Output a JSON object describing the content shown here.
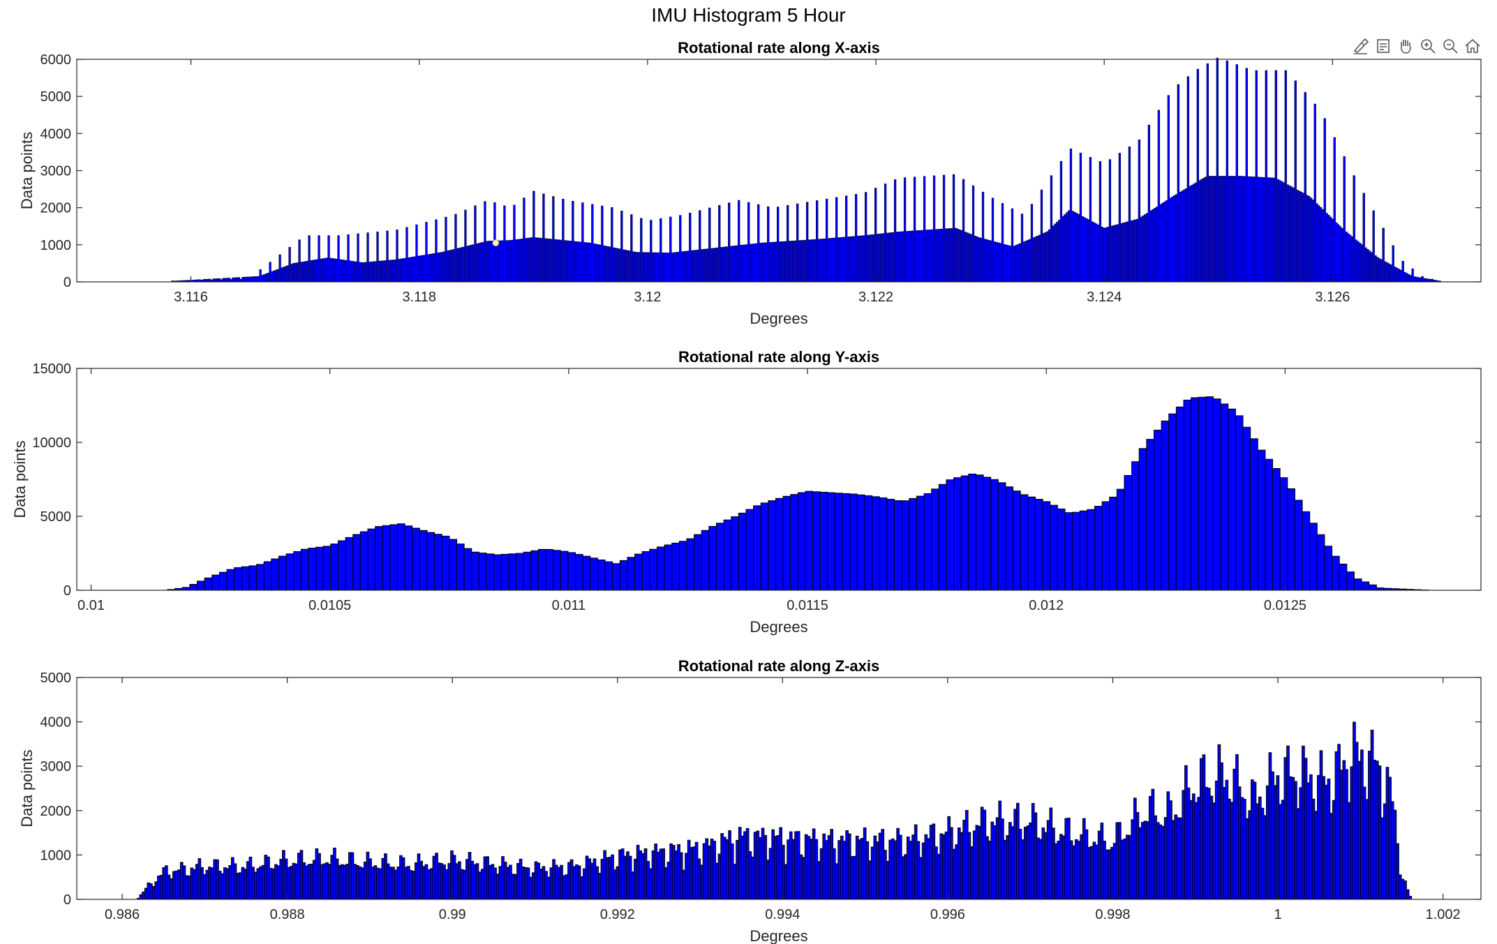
{
  "figure": {
    "title": "IMU Histogram 5 Hour"
  },
  "toolbar": {
    "icons": [
      "brush-icon",
      "data-tips-icon",
      "pan-hand-icon",
      "zoom-in-icon",
      "zoom-out-icon",
      "home-icon"
    ]
  },
  "colors": {
    "bar_fill": "#0000ff",
    "bar_edge": "#000000",
    "axis": "#262626",
    "marker": "#ffffaa"
  },
  "chart_data": [
    {
      "type": "bar",
      "title": "Rotational rate along X-axis",
      "xlabel": "Degrees",
      "ylabel": "Data points",
      "xlim": [
        3.115,
        3.1273
      ],
      "ylim": [
        0,
        6000
      ],
      "xticks": [
        3.116,
        3.118,
        3.12,
        3.122,
        3.124,
        3.126
      ],
      "xtick_labels": [
        "3.116",
        "3.118",
        "3.12",
        "3.122",
        "3.124",
        "3.126"
      ],
      "yticks": [
        0,
        1000,
        2000,
        3000,
        4000,
        5000,
        6000
      ],
      "ytick_labels": [
        "0",
        "1000",
        "2000",
        "3000",
        "4000",
        "5000",
        "6000"
      ],
      "x_range": [
        3.11583,
        3.12695
      ],
      "bin_count": 650,
      "tall_bar_every": 5,
      "tall_envelope": [
        [
          3.11583,
          30
        ],
        [
          3.1165,
          80
        ],
        [
          3.117,
          1250
        ],
        [
          3.1173,
          1250
        ],
        [
          3.1178,
          1400
        ],
        [
          3.1183,
          1800
        ],
        [
          3.1186,
          2200
        ],
        [
          3.1188,
          2000
        ],
        [
          3.119,
          2450
        ],
        [
          3.1193,
          2200
        ],
        [
          3.1197,
          2000
        ],
        [
          3.12,
          1650
        ],
        [
          3.1203,
          1800
        ],
        [
          3.1208,
          2200
        ],
        [
          3.1211,
          2000
        ],
        [
          3.1215,
          2200
        ],
        [
          3.1219,
          2400
        ],
        [
          3.1222,
          2800
        ],
        [
          3.1227,
          2900
        ],
        [
          3.123,
          2300
        ],
        [
          3.1233,
          1800
        ],
        [
          3.1237,
          3600
        ],
        [
          3.124,
          3200
        ],
        [
          3.1243,
          3800
        ],
        [
          3.1246,
          5200
        ],
        [
          3.1248,
          5700
        ],
        [
          3.125,
          6050
        ],
        [
          3.1253,
          5700
        ],
        [
          3.1256,
          5700
        ],
        [
          3.1259,
          4600
        ],
        [
          3.1262,
          2800
        ],
        [
          3.1264,
          1700
        ],
        [
          3.1266,
          600
        ],
        [
          3.1268,
          120
        ],
        [
          3.12695,
          30
        ]
      ],
      "base_envelope": [
        [
          3.11583,
          20
        ],
        [
          3.1166,
          150
        ],
        [
          3.1169,
          500
        ],
        [
          3.1172,
          650
        ],
        [
          3.1175,
          520
        ],
        [
          3.1178,
          600
        ],
        [
          3.1182,
          800
        ],
        [
          3.1186,
          1100
        ],
        [
          3.1188,
          1120
        ],
        [
          3.119,
          1200
        ],
        [
          3.1195,
          1050
        ],
        [
          3.1199,
          800
        ],
        [
          3.1202,
          780
        ],
        [
          3.1207,
          950
        ],
        [
          3.121,
          1050
        ],
        [
          3.1215,
          1150
        ],
        [
          3.1219,
          1250
        ],
        [
          3.1222,
          1350
        ],
        [
          3.1227,
          1450
        ],
        [
          3.1229,
          1200
        ],
        [
          3.1232,
          950
        ],
        [
          3.1235,
          1350
        ],
        [
          3.1237,
          1950
        ],
        [
          3.124,
          1450
        ],
        [
          3.1243,
          1700
        ],
        [
          3.1246,
          2300
        ],
        [
          3.1249,
          2850
        ],
        [
          3.1252,
          2850
        ],
        [
          3.1255,
          2800
        ],
        [
          3.1258,
          2300
        ],
        [
          3.1261,
          1400
        ],
        [
          3.1264,
          650
        ],
        [
          3.1267,
          150
        ],
        [
          3.12695,
          20
        ]
      ],
      "marker_point": {
        "x": 3.11867,
        "y": 1050
      }
    },
    {
      "type": "bar",
      "title": "Rotational rate along Y-axis",
      "xlabel": "Degrees",
      "ylabel": "Data points",
      "xlim": [
        0.00997,
        0.01291
      ],
      "ylim": [
        0,
        15000
      ],
      "xticks": [
        0.01,
        0.0105,
        0.011,
        0.0115,
        0.012,
        0.0125
      ],
      "xtick_labels": [
        "0.01",
        "0.0105",
        "0.011",
        "0.0115",
        "0.012",
        "0.0125"
      ],
      "yticks": [
        0,
        5000,
        10000,
        15000
      ],
      "ytick_labels": [
        "0",
        "5000",
        "10000",
        "15000"
      ],
      "x_range": [
        0.01016,
        0.0128
      ],
      "bin_count": 170,
      "tall_bar_every": 1,
      "tall_envelope": [
        [
          0.01016,
          20
        ],
        [
          0.0102,
          200
        ],
        [
          0.01025,
          900
        ],
        [
          0.0103,
          1500
        ],
        [
          0.01035,
          1700
        ],
        [
          0.0104,
          2300
        ],
        [
          0.01045,
          2800
        ],
        [
          0.0105,
          3000
        ],
        [
          0.01055,
          3700
        ],
        [
          0.0106,
          4300
        ],
        [
          0.01065,
          4500
        ],
        [
          0.0107,
          4000
        ],
        [
          0.01075,
          3600
        ],
        [
          0.0108,
          2600
        ],
        [
          0.01085,
          2400
        ],
        [
          0.0109,
          2500
        ],
        [
          0.01095,
          2800
        ],
        [
          0.011,
          2600
        ],
        [
          0.01105,
          2200
        ],
        [
          0.0111,
          1800
        ],
        [
          0.01115,
          2500
        ],
        [
          0.0112,
          3000
        ],
        [
          0.01125,
          3400
        ],
        [
          0.0113,
          4300
        ],
        [
          0.01135,
          5000
        ],
        [
          0.0114,
          5800
        ],
        [
          0.01145,
          6300
        ],
        [
          0.0115,
          6700
        ],
        [
          0.01155,
          6600
        ],
        [
          0.0116,
          6500
        ],
        [
          0.01165,
          6300
        ],
        [
          0.0117,
          6000
        ],
        [
          0.01175,
          6500
        ],
        [
          0.0118,
          7500
        ],
        [
          0.01185,
          7900
        ],
        [
          0.0119,
          7400
        ],
        [
          0.01195,
          6500
        ],
        [
          0.012,
          6000
        ],
        [
          0.01205,
          5200
        ],
        [
          0.0121,
          5500
        ],
        [
          0.01215,
          6500
        ],
        [
          0.0122,
          9500
        ],
        [
          0.01225,
          11500
        ],
        [
          0.0123,
          13000
        ],
        [
          0.01235,
          13100
        ],
        [
          0.0124,
          12000
        ],
        [
          0.01245,
          9500
        ],
        [
          0.0125,
          7500
        ],
        [
          0.01255,
          5000
        ],
        [
          0.0126,
          2500
        ],
        [
          0.01265,
          800
        ],
        [
          0.0127,
          150
        ],
        [
          0.0128,
          10
        ]
      ],
      "base_envelope": [
        [
          0.01016,
          0
        ],
        [
          0.0128,
          0
        ]
      ]
    },
    {
      "type": "bar",
      "title": "Rotational rate along Z-axis",
      "xlabel": "Degrees",
      "ylabel": "Data points",
      "xlim": [
        0.98545,
        1.00246
      ],
      "ylim": [
        0,
        5000
      ],
      "xticks": [
        0.986,
        0.988,
        0.99,
        0.992,
        0.994,
        0.996,
        0.998,
        1.0,
        1.002
      ],
      "xtick_labels": [
        "0.986",
        "0.988",
        "0.99",
        "0.992",
        "0.994",
        "0.996",
        "0.998",
        "1",
        "1.002"
      ],
      "yticks": [
        0,
        1000,
        2000,
        3000,
        4000,
        5000
      ],
      "ytick_labels": [
        "0",
        "1000",
        "2000",
        "3000",
        "4000",
        "5000"
      ],
      "x_range": [
        0.98618,
        1.00162
      ],
      "bin_count": 500,
      "tall_bar_every": 1,
      "tall_envelope": [
        [
          0.98618,
          0
        ],
        [
          0.9863,
          300
        ],
        [
          0.9865,
          700
        ],
        [
          0.987,
          850
        ],
        [
          0.9875,
          850
        ],
        [
          0.988,
          1000
        ],
        [
          0.9885,
          1050
        ],
        [
          0.989,
          950
        ],
        [
          0.9895,
          900
        ],
        [
          0.99,
          1000
        ],
        [
          0.9905,
          900
        ],
        [
          0.991,
          800
        ],
        [
          0.9915,
          850
        ],
        [
          0.992,
          1100
        ],
        [
          0.9925,
          1200
        ],
        [
          0.993,
          1300
        ],
        [
          0.9935,
          1600
        ],
        [
          0.994,
          1550
        ],
        [
          0.9945,
          1500
        ],
        [
          0.995,
          1500
        ],
        [
          0.9955,
          1500
        ],
        [
          0.996,
          1700
        ],
        [
          0.9965,
          2000
        ],
        [
          0.997,
          2000
        ],
        [
          0.9975,
          1700
        ],
        [
          0.998,
          1500
        ],
        [
          0.9984,
          2300
        ],
        [
          0.9987,
          2200
        ],
        [
          0.999,
          3000
        ],
        [
          0.9994,
          3200
        ],
        [
          0.9997,
          2500
        ],
        [
          1.0,
          3200
        ],
        [
          1.0003,
          3200
        ],
        [
          1.0006,
          3000
        ],
        [
          1.0009,
          3700
        ],
        [
          1.0012,
          3500
        ],
        [
          1.0014,
          2500
        ],
        [
          1.0015,
          600
        ],
        [
          1.00162,
          0
        ]
      ],
      "base_envelope": [
        [
          0.98618,
          0
        ],
        [
          1.00162,
          0
        ]
      ]
    }
  ]
}
